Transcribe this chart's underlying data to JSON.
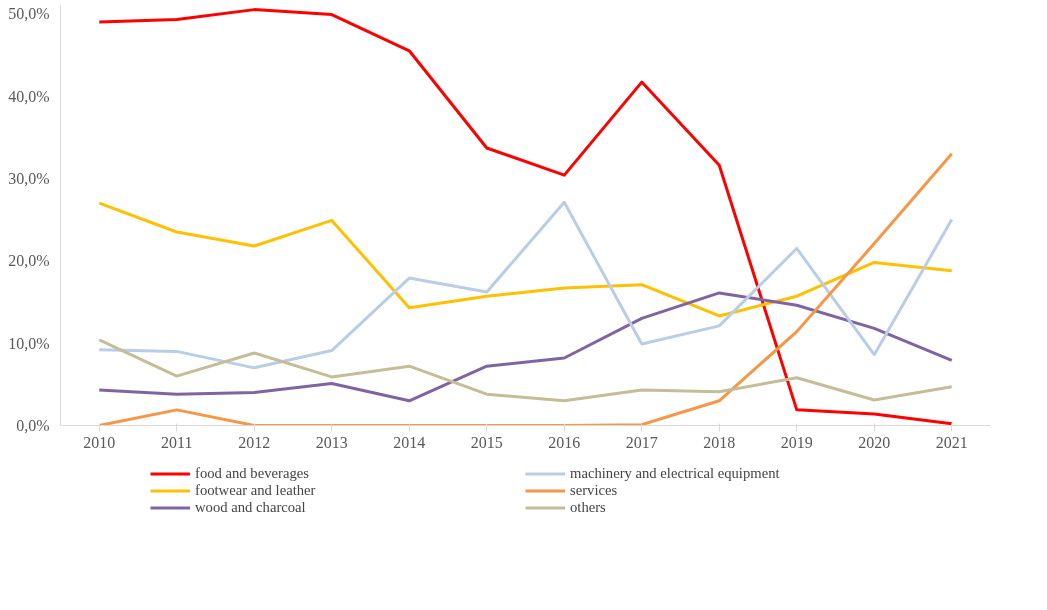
{
  "chart_data": {
    "type": "line",
    "categories": [
      "2010",
      "2011",
      "2012",
      "2013",
      "2014",
      "2015",
      "2016",
      "2017",
      "2018",
      "2019",
      "2020",
      "2021"
    ],
    "ylim": [
      0,
      51
    ],
    "yticks": [
      {
        "value": 0,
        "label": "0,0%"
      },
      {
        "value": 10,
        "label": "10,0%"
      },
      {
        "value": 20,
        "label": "20,0%"
      },
      {
        "value": 30,
        "label": "30,0%"
      },
      {
        "value": 40,
        "label": "40,0%"
      },
      {
        "value": 50,
        "label": "50,0%"
      }
    ],
    "grid": false,
    "legend": "bottom",
    "marker": "none",
    "line_style": "solid",
    "series": [
      {
        "name": "food and beverages",
        "color": "#ff0000",
        "values": [
          49.0,
          49.3,
          50.5,
          49.9,
          45.5,
          33.7,
          30.4,
          41.7,
          31.6,
          1.9,
          1.4,
          0.2
        ]
      },
      {
        "name": "footwear and leather",
        "color": "#ffc000",
        "values": [
          27.0,
          23.5,
          21.8,
          24.9,
          14.3,
          15.7,
          16.7,
          17.1,
          13.3,
          15.7,
          19.8,
          18.8
        ]
      },
      {
        "name": "wood and charcoal",
        "color": "#8064a2",
        "values": [
          4.3,
          3.8,
          4.0,
          5.1,
          3.0,
          7.2,
          8.2,
          13.0,
          16.1,
          14.6,
          11.8,
          7.9
        ]
      },
      {
        "name": "machinery and electrical equipment",
        "color": "#b9cde5",
        "values": [
          9.2,
          9.0,
          7.0,
          9.1,
          17.9,
          16.2,
          27.1,
          9.9,
          12.1,
          21.5,
          8.6,
          25.0
        ]
      },
      {
        "name": "services",
        "color": "#f79646",
        "values": [
          0,
          1.9,
          0,
          0,
          0,
          0,
          0,
          0.1,
          3.0,
          11.4,
          22.1,
          33.0
        ]
      },
      {
        "name": "others",
        "color": "#c4bd97",
        "values": [
          10.4,
          6.0,
          8.8,
          5.9,
          7.2,
          3.8,
          3.0,
          4.3,
          4.1,
          5.8,
          3.1,
          4.7
        ]
      }
    ]
  }
}
